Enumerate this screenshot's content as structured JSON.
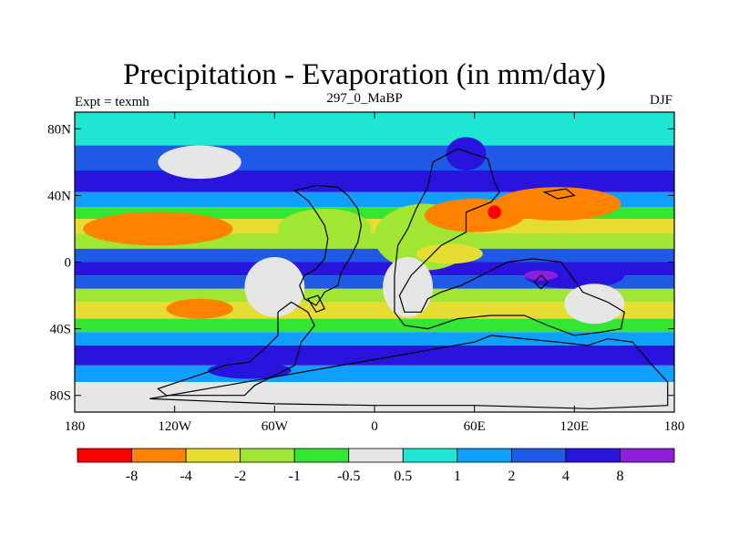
{
  "title": "Precipitation - Evaporation (in mm/day)",
  "subtitle_left": "Expt = texmh",
  "subtitle_center": "297_0_MaBP",
  "subtitle_right": "DJF",
  "map": {
    "x_ticks": [
      "180",
      "120W",
      "60W",
      "0",
      "60E",
      "120E",
      "180"
    ],
    "y_ticks": [
      "80N",
      "40N",
      "0",
      "40S",
      "80S"
    ],
    "lon_range": [
      -180,
      180
    ],
    "lat_range": [
      -90,
      90
    ],
    "background_color": "#e6e6e6",
    "coastline_color": "#000000"
  },
  "colorbar": {
    "colors": [
      "#ff0000",
      "#ff8200",
      "#e6dc32",
      "#a0e632",
      "#32e632",
      "#e6e6e6",
      "#1ee6d2",
      "#0fa0ff",
      "#1e5ae6",
      "#2814dc",
      "#8c1edc"
    ],
    "labels": [
      "-8",
      "-4",
      "-2",
      "-1",
      "-0.5",
      "0.5",
      "1",
      "2",
      "4",
      "8"
    ]
  },
  "field_bands": [
    {
      "lat": [
        70,
        90
      ],
      "value": 0.7
    },
    {
      "lat": [
        55,
        70
      ],
      "value": 2.5
    },
    {
      "lat": [
        42,
        55
      ],
      "value": 5
    },
    {
      "lat": [
        33,
        42
      ],
      "value": 1.5
    },
    {
      "lat": [
        26,
        33
      ],
      "value": -0.7
    },
    {
      "lat": [
        17,
        26
      ],
      "value": -2.5
    },
    {
      "lat": [
        8,
        17
      ],
      "value": -1.5
    },
    {
      "lat": [
        0,
        8
      ],
      "value": 2.5
    },
    {
      "lat": [
        -8,
        0
      ],
      "value": 6
    },
    {
      "lat": [
        -16,
        -8
      ],
      "value": 2.5
    },
    {
      "lat": [
        -24,
        -16
      ],
      "value": -1.5
    },
    {
      "lat": [
        -34,
        -24
      ],
      "value": -3
    },
    {
      "lat": [
        -42,
        -34
      ],
      "value": -0.7
    },
    {
      "lat": [
        -50,
        -42
      ],
      "value": 1.5
    },
    {
      "lat": [
        -62,
        -50
      ],
      "value": 4.5
    },
    {
      "lat": [
        -72,
        -62
      ],
      "value": 1.5
    },
    {
      "lat": [
        -90,
        -72
      ],
      "value": 0
    }
  ],
  "field_patches": [
    {
      "lon": -130,
      "lat": 20,
      "rx": 45,
      "ry": 10,
      "value": -5
    },
    {
      "lon": -30,
      "lat": 20,
      "rx": 28,
      "ry": 12,
      "value": -1.5
    },
    {
      "lon": 30,
      "lat": 15,
      "rx": 30,
      "ry": 20,
      "value": -1.5
    },
    {
      "lon": 60,
      "lat": 28,
      "rx": 30,
      "ry": 10,
      "value": -5
    },
    {
      "lon": 45,
      "lat": 5,
      "rx": 20,
      "ry": 6,
      "value": -3
    },
    {
      "lon": 110,
      "lat": 35,
      "rx": 38,
      "ry": 10,
      "value": -5
    },
    {
      "lon": 72,
      "lat": 30,
      "rx": 4,
      "ry": 4,
      "value": -9
    },
    {
      "lon": 120,
      "lat": -8,
      "rx": 30,
      "ry": 8,
      "value": 6
    },
    {
      "lon": 100,
      "lat": -8,
      "rx": 10,
      "ry": 3,
      "value": 9
    },
    {
      "lon": -105,
      "lat": -28,
      "rx": 20,
      "ry": 6,
      "value": -5
    },
    {
      "lon": -60,
      "lat": -15,
      "rx": 18,
      "ry": 18,
      "value": 0
    },
    {
      "lon": 20,
      "lat": -15,
      "rx": 15,
      "ry": 18,
      "value": 0
    },
    {
      "lon": 132,
      "lat": -25,
      "rx": 18,
      "ry": 12,
      "value": 0
    },
    {
      "lon": -105,
      "lat": 60,
      "rx": 25,
      "ry": 10,
      "value": 0
    },
    {
      "lon": 55,
      "lat": 65,
      "rx": 12,
      "ry": 10,
      "value": 5
    },
    {
      "lon": -75,
      "lat": -65,
      "rx": 25,
      "ry": 5,
      "value": 6
    }
  ],
  "coastlines": [
    {
      "name": "north-america",
      "lon_lat": [
        [
          -48,
          43
        ],
        [
          -40,
          37
        ],
        [
          -35,
          30
        ],
        [
          -30,
          22
        ],
        [
          -28,
          14
        ],
        [
          -30,
          2
        ],
        [
          -35,
          -4
        ],
        [
          -42,
          -8
        ],
        [
          -45,
          -14
        ],
        [
          -42,
          -22
        ],
        [
          -35,
          -26
        ],
        [
          -30,
          -18
        ],
        [
          -22,
          -14
        ],
        [
          -20,
          -6
        ],
        [
          -15,
          2
        ],
        [
          -10,
          12
        ],
        [
          -8,
          22
        ],
        [
          -10,
          32
        ],
        [
          -16,
          40
        ],
        [
          -22,
          45
        ],
        [
          -35,
          46
        ]
      ]
    },
    {
      "name": "south-america",
      "lon_lat": [
        [
          -50,
          -24
        ],
        [
          -58,
          -30
        ],
        [
          -58,
          -44
        ],
        [
          -66,
          -52
        ],
        [
          -75,
          -60
        ],
        [
          -90,
          -62
        ],
        [
          -100,
          -66
        ],
        [
          -118,
          -72
        ],
        [
          -130,
          -76
        ],
        [
          -125,
          -80
        ],
        [
          -100,
          -80
        ],
        [
          -78,
          -80
        ],
        [
          -72,
          -74
        ],
        [
          -60,
          -68
        ],
        [
          -48,
          -62
        ],
        [
          -44,
          -48
        ],
        [
          -36,
          -38
        ],
        [
          -40,
          -30
        ]
      ]
    },
    {
      "name": "africa-eurasia",
      "lon_lat": [
        [
          20,
          20
        ],
        [
          25,
          32
        ],
        [
          32,
          45
        ],
        [
          35,
          60
        ],
        [
          50,
          68
        ],
        [
          68,
          62
        ],
        [
          72,
          48
        ],
        [
          75,
          42
        ],
        [
          70,
          36
        ],
        [
          55,
          30
        ],
        [
          55,
          18
        ],
        [
          40,
          10
        ],
        [
          30,
          0
        ],
        [
          22,
          -8
        ],
        [
          15,
          -20
        ],
        [
          18,
          -30
        ],
        [
          28,
          -30
        ],
        [
          32,
          -22
        ],
        [
          40,
          -18
        ],
        [
          52,
          -14
        ],
        [
          60,
          -10
        ],
        [
          80,
          0
        ],
        [
          95,
          2
        ],
        [
          112,
          0
        ],
        [
          118,
          -8
        ],
        [
          125,
          -18
        ],
        [
          140,
          -24
        ],
        [
          150,
          -30
        ],
        [
          148,
          -40
        ],
        [
          136,
          -42
        ],
        [
          120,
          -44
        ],
        [
          104,
          -38
        ],
        [
          90,
          -32
        ],
        [
          70,
          -32
        ],
        [
          50,
          -34
        ],
        [
          32,
          -40
        ],
        [
          18,
          -38
        ],
        [
          12,
          -30
        ],
        [
          12,
          -8
        ],
        [
          14,
          10
        ]
      ]
    },
    {
      "name": "antarctica",
      "lon_lat": [
        [
          -135,
          -82
        ],
        [
          -60,
          -85
        ],
        [
          0,
          -86
        ],
        [
          60,
          -86
        ],
        [
          130,
          -88
        ],
        [
          176,
          -86
        ],
        [
          176,
          -72
        ],
        [
          165,
          -60
        ],
        [
          155,
          -48
        ],
        [
          140,
          -46
        ],
        [
          128,
          -50
        ],
        [
          110,
          -48
        ],
        [
          90,
          -46
        ],
        [
          70,
          -44
        ],
        [
          60,
          -48
        ]
      ]
    },
    {
      "name": "island-1",
      "lon_lat": [
        [
          -40,
          -22
        ],
        [
          -35,
          -30
        ],
        [
          -30,
          -28
        ],
        [
          -34,
          -20
        ]
      ]
    },
    {
      "name": "island-2",
      "lon_lat": [
        [
          102,
          42
        ],
        [
          115,
          44
        ],
        [
          120,
          40
        ],
        [
          110,
          38
        ]
      ]
    },
    {
      "name": "island-3",
      "lon_lat": [
        [
          96,
          -12
        ],
        [
          100,
          -16
        ],
        [
          104,
          -12
        ],
        [
          100,
          -8
        ]
      ]
    }
  ]
}
